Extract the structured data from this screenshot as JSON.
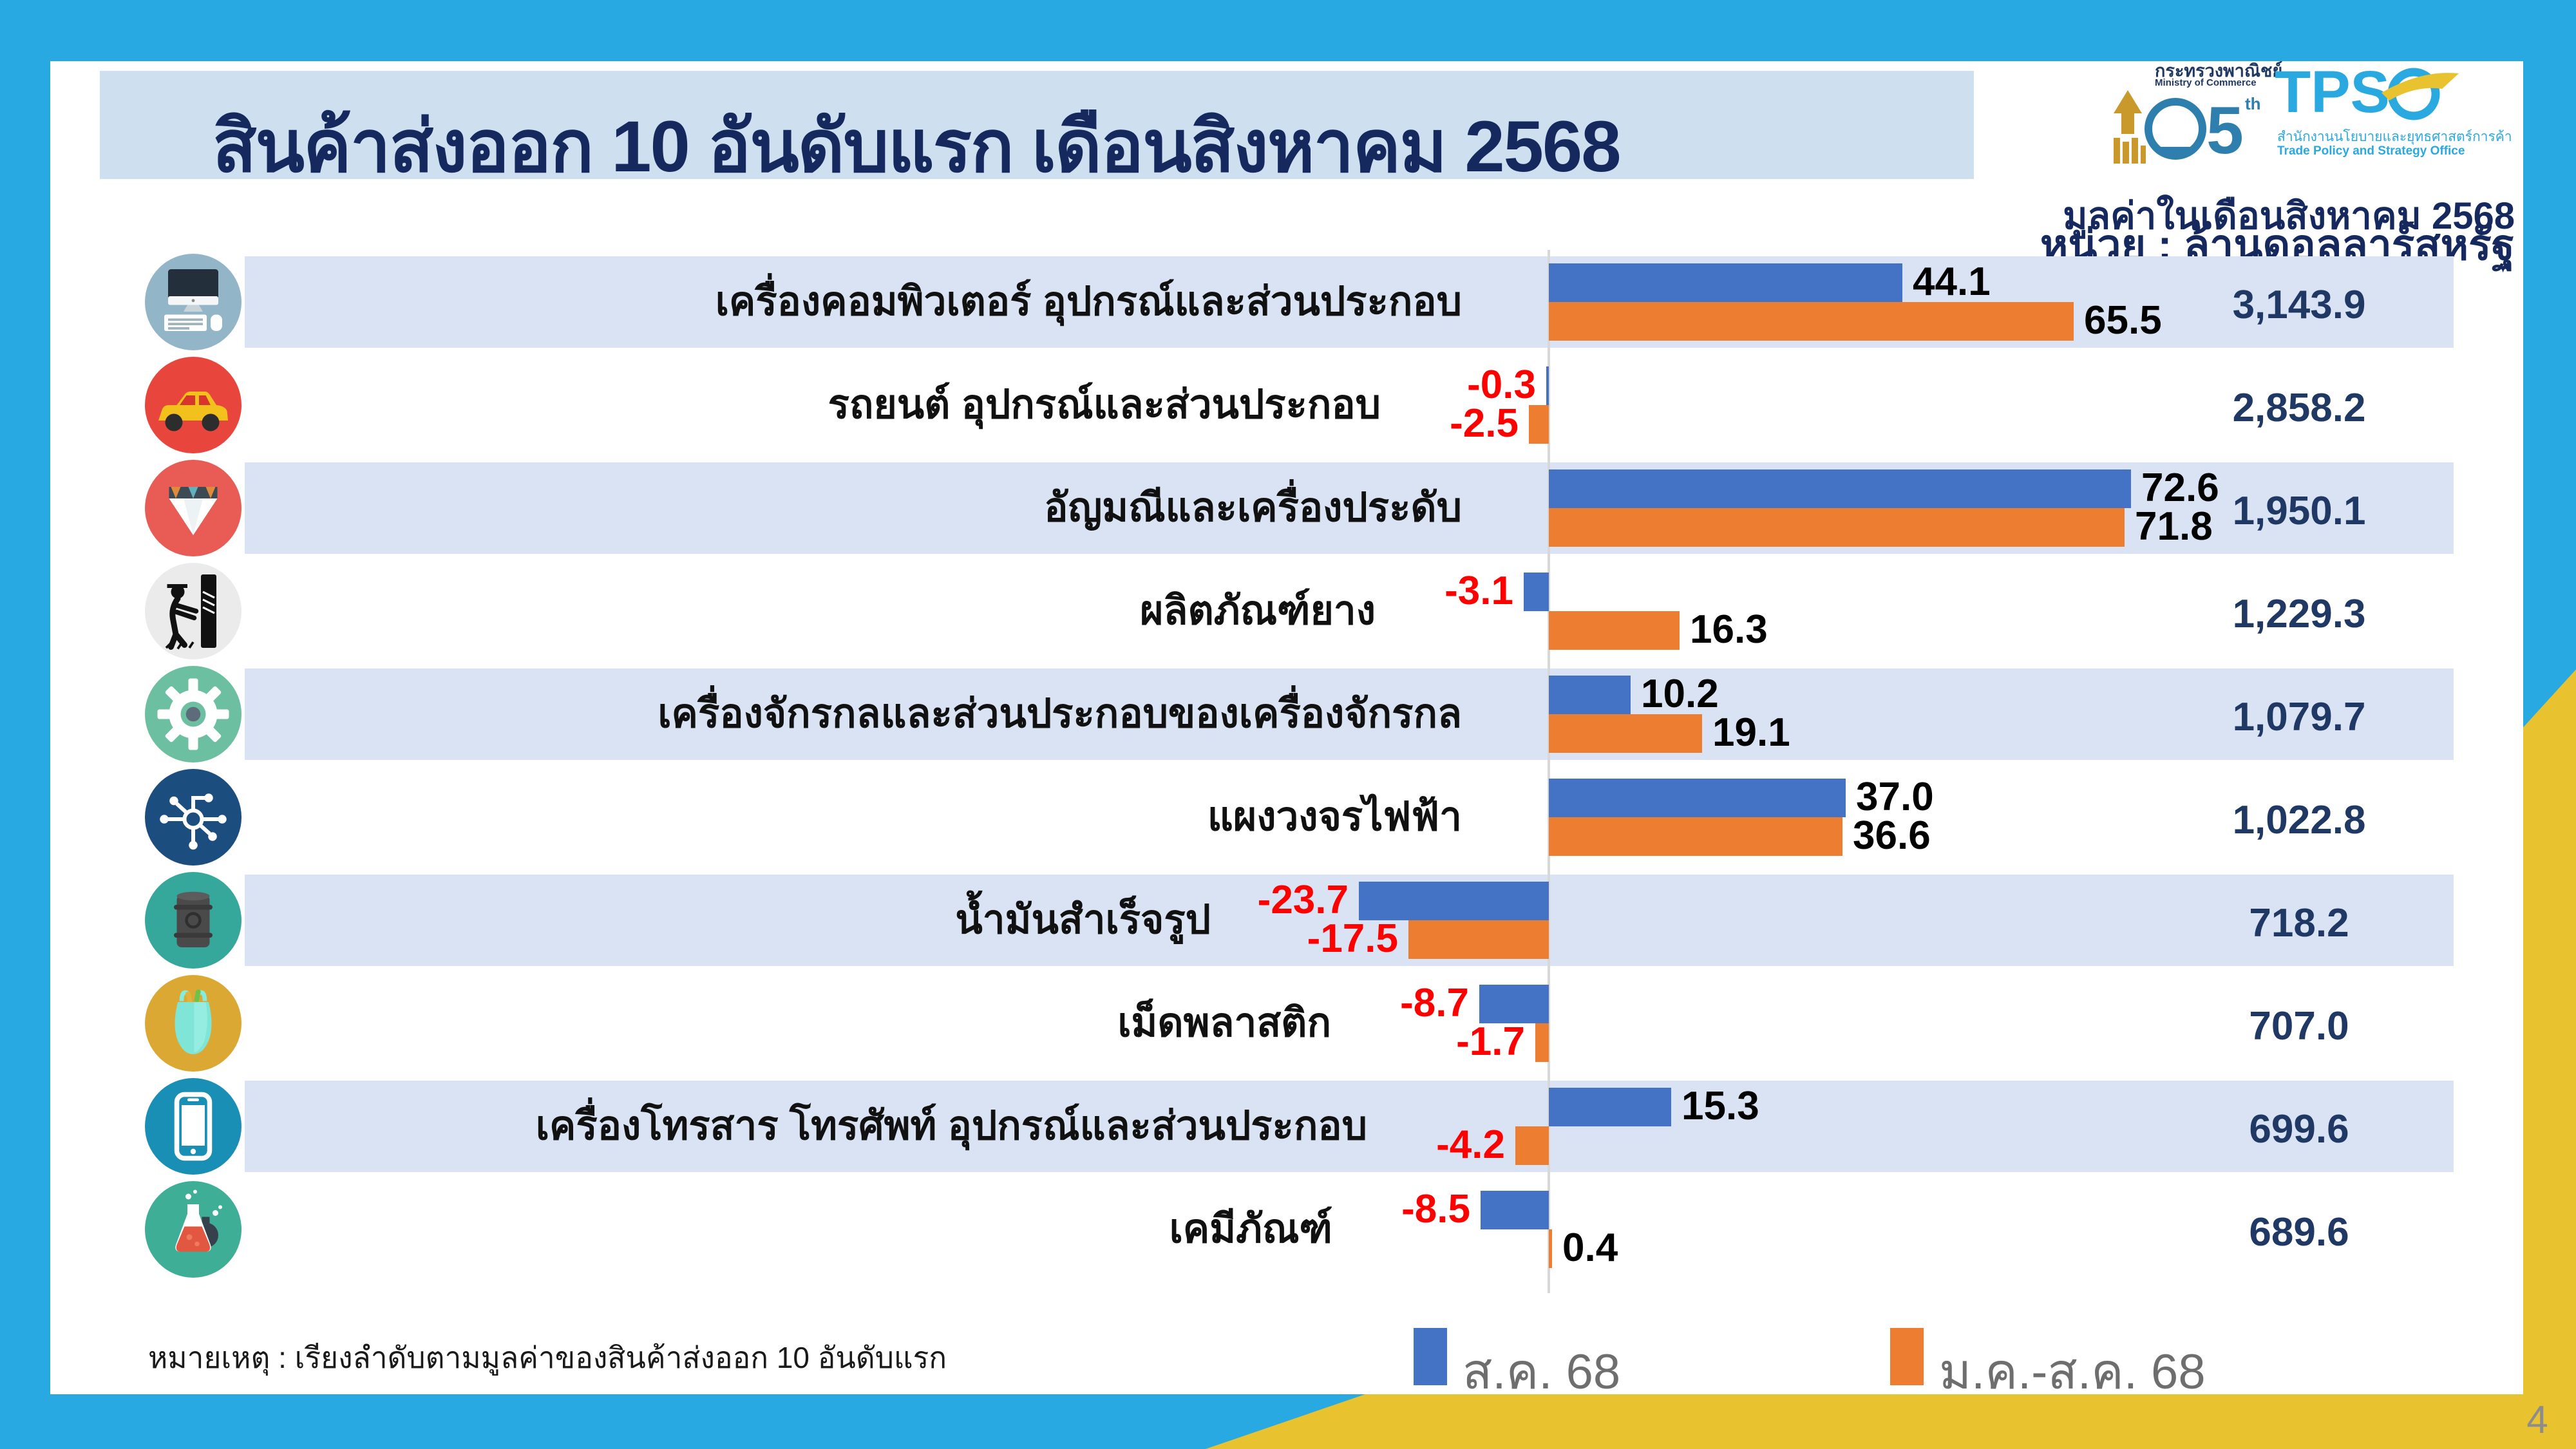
{
  "title": "สินค้าส่งออก 10 อันดับแรก เดือนสิงหาคม 2568",
  "subtitle_line1": "มูลค่าในเดือนสิงหาคม 2568",
  "subtitle_line2": "หน่วย : ล้านดอลลาร์สหรัฐ",
  "footnote": "หมายเหตุ : เรียงลำดับตามมูลค่าของสินค้าส่งออก 10 อันดับแรก",
  "page_number": "4",
  "logos": {
    "ministry_th": "กระทรวงพาณิชย์",
    "ministry_en": "Ministry of Commerce",
    "ministry_anniversary": "105th",
    "tpso_acronym": "TPS",
    "tpso_th": "สำนักงานนโยบายและยุทธศาสตร์การค้า",
    "tpso_en": "Trade Policy and Strategy Office"
  },
  "legend": [
    {
      "label": "ส.ค. 68",
      "color": "#4472C4"
    },
    {
      "label": "ม.ค.-ส.ค. 68",
      "color": "#ED7D31"
    }
  ],
  "colors": {
    "bar_blue": "#4472C4",
    "bar_orange": "#ED7D31",
    "band_light_blue": "#DAE3F3",
    "title_banner": "#CEDFF0",
    "navy_text": "#15295E",
    "negative_red": "#FF0000",
    "frame_cyan": "#29A9E1",
    "frame_yellow": "#E9C32F",
    "axis_gray": "#D8D8D8"
  },
  "chart_data": {
    "type": "bar",
    "orientation": "horizontal",
    "title": "สินค้าส่งออก 10 อันดับแรก เดือนสิงหาคม 2568",
    "value_unit": "ล้านดอลลาร์สหรัฐ",
    "series_names": [
      "ส.ค. 68",
      "ม.ค.-ส.ค. 68"
    ],
    "note": "growth rates (%) as bars; right column = export value in million USD",
    "xlim": [
      -30,
      80
    ],
    "rows": [
      {
        "category": "เครื่องคอมพิวเตอร์ อุปกรณ์และส่วนประกอบ",
        "icon": "computer-icon",
        "icon_bg": "#93B5C8",
        "aug": 44.1,
        "jan_aug": 65.5,
        "value": "3,143.9",
        "banded": true
      },
      {
        "category": "รถยนต์ อุปกรณ์และส่วนประกอบ",
        "icon": "car-icon",
        "icon_bg": "#E8463C",
        "aug": -0.3,
        "jan_aug": -2.5,
        "value": "2,858.2",
        "banded": false
      },
      {
        "category": "อัญมณีและเครื่องประดับ",
        "icon": "gem-icon",
        "icon_bg": "#E85C55",
        "aug": 72.6,
        "jan_aug": 71.8,
        "value": "1,950.1",
        "banded": true
      },
      {
        "category": "ผลิตภัณฑ์ยาง",
        "icon": "rubber-tapping-icon",
        "icon_bg": "#EBEBEB",
        "aug": -3.1,
        "jan_aug": 16.3,
        "value": "1,229.3",
        "banded": false
      },
      {
        "category": "เครื่องจักรกลและส่วนประกอบของเครื่องจักรกล",
        "icon": "gear-icon",
        "icon_bg": "#6CBFA0",
        "aug": 10.2,
        "jan_aug": 19.1,
        "value": "1,079.7",
        "banded": true
      },
      {
        "category": "แผงวงจรไฟฟ้า",
        "icon": "circuit-board-icon",
        "icon_bg": "#1B4E7E",
        "aug": 37.0,
        "jan_aug": 36.6,
        "value": "1,022.8",
        "banded": false
      },
      {
        "category": "น้ำมันสำเร็จรูป",
        "icon": "oil-barrel-icon",
        "icon_bg": "#35A79B",
        "aug": -23.7,
        "jan_aug": -17.5,
        "value": "718.2",
        "banded": true
      },
      {
        "category": "เม็ดพลาสติก",
        "icon": "plastic-bag-icon",
        "icon_bg": "#DBA833",
        "aug": -8.7,
        "jan_aug": -1.7,
        "value": "707.0",
        "banded": false
      },
      {
        "category": "เครื่องโทรสาร โทรศัพท์ อุปกรณ์และส่วนประกอบ",
        "icon": "phone-icon",
        "icon_bg": "#1A8FB5",
        "aug": 15.3,
        "jan_aug": -4.2,
        "value": "699.6",
        "banded": true
      },
      {
        "category": "เคมีภัณฑ์",
        "icon": "chemical-flask-icon",
        "icon_bg": "#3FAE96",
        "aug": -8.5,
        "jan_aug": 0.4,
        "value": "689.6",
        "banded": false
      }
    ]
  }
}
